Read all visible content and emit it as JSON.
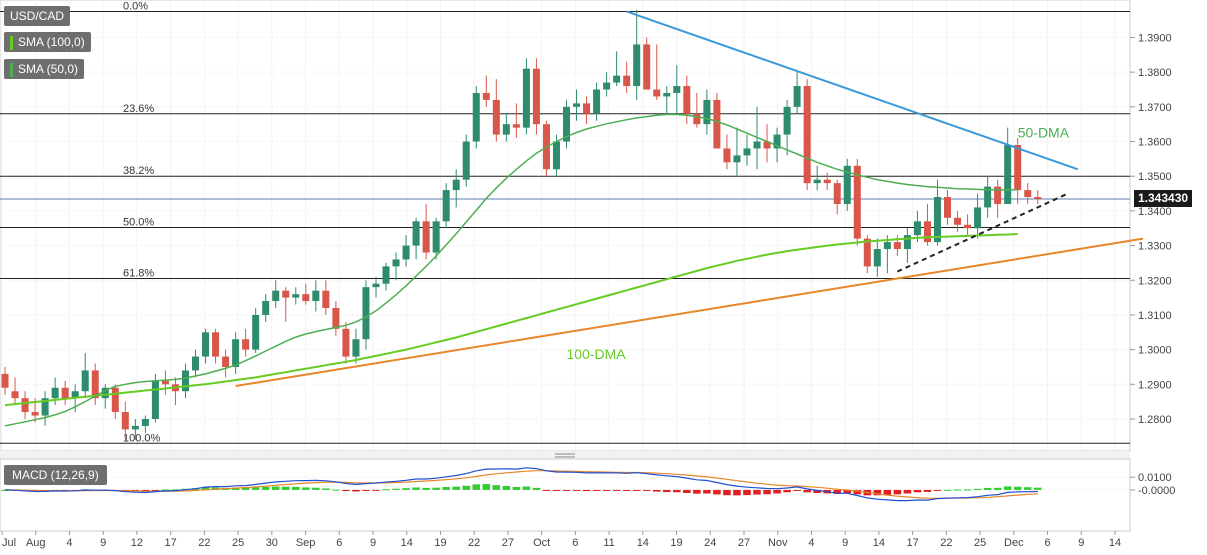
{
  "legend": {
    "symbol": "USD/CAD",
    "sma100": "SMA (100,0)",
    "sma50": "SMA (50,0)",
    "macd": "MACD (12,26,9)"
  },
  "colors": {
    "up": "#2e8b6e",
    "down": "#d9574a",
    "sma50": "#4caf50",
    "sma100": "#66cc22",
    "trend_down": "#3a9ad9",
    "trend_up": "#e8862a",
    "macd_line": "#2050d0",
    "signal_line": "#e8862a",
    "hist_pos": "#33cc33",
    "hist_neg": "#e02020"
  },
  "chart_data": [
    {
      "type": "candlestick",
      "title": "USD/CAD",
      "last_price": "1.343430",
      "ylim": [
        1.2725,
        1.3985
      ],
      "y_ticks": [
        "1.3900",
        "1.3800",
        "1.3700",
        "1.3600",
        "1.3500",
        "1.3400",
        "1.3300",
        "1.3200",
        "1.3100",
        "1.3000",
        "1.2900",
        "1.2800"
      ],
      "x_ticks": [
        "Jul",
        "Aug",
        "4",
        "9",
        "12",
        "17",
        "22",
        "25",
        "30",
        "Sep",
        "6",
        "9",
        "14",
        "19",
        "22",
        "27",
        "Oct",
        "6",
        "11",
        "14",
        "19",
        "24",
        "27",
        "Nov",
        "4",
        "9",
        "14",
        "17",
        "22",
        "25",
        "Dec",
        "6",
        "9",
        "14"
      ],
      "fib_levels": [
        {
          "label": "0.0%",
          "value": 1.3975
        },
        {
          "label": "23.6%",
          "value": 1.368
        },
        {
          "label": "38.2%",
          "value": 1.35
        },
        {
          "label": "50.0%",
          "value": 1.3352
        },
        {
          "label": "61.8%",
          "value": 1.3205
        },
        {
          "label": "100.0%",
          "value": 1.273
        }
      ],
      "annotations": [
        {
          "text": "50-DMA",
          "color": "#4caf50"
        },
        {
          "text": "100-DMA",
          "color": "#66cc22"
        }
      ],
      "ohlc": [
        [
          1.293,
          1.295,
          1.287,
          1.289
        ],
        [
          1.288,
          1.292,
          1.284,
          1.286
        ],
        [
          1.286,
          1.288,
          1.28,
          1.282
        ],
        [
          1.282,
          1.286,
          1.279,
          1.281
        ],
        [
          1.281,
          1.288,
          1.278,
          1.286
        ],
        [
          1.286,
          1.292,
          1.284,
          1.289
        ],
        [
          1.289,
          1.291,
          1.284,
          1.286
        ],
        [
          1.286,
          1.29,
          1.282,
          1.288
        ],
        [
          1.288,
          1.299,
          1.286,
          1.294
        ],
        [
          1.294,
          1.296,
          1.284,
          1.286
        ],
        [
          1.286,
          1.29,
          1.283,
          1.289
        ],
        [
          1.289,
          1.29,
          1.28,
          1.282
        ],
        [
          1.282,
          1.285,
          1.274,
          1.277
        ],
        [
          1.277,
          1.28,
          1.274,
          1.278
        ],
        [
          1.278,
          1.281,
          1.276,
          1.28
        ],
        [
          1.28,
          1.293,
          1.279,
          1.291
        ],
        [
          1.291,
          1.294,
          1.287,
          1.29
        ],
        [
          1.29,
          1.292,
          1.284,
          1.288
        ],
        [
          1.288,
          1.296,
          1.286,
          1.294
        ],
        [
          1.294,
          1.3,
          1.292,
          1.298
        ],
        [
          1.298,
          1.306,
          1.296,
          1.305
        ],
        [
          1.305,
          1.306,
          1.296,
          1.298
        ],
        [
          1.298,
          1.3,
          1.292,
          1.295
        ],
        [
          1.295,
          1.305,
          1.293,
          1.303
        ],
        [
          1.303,
          1.306,
          1.298,
          1.3
        ],
        [
          1.3,
          1.312,
          1.299,
          1.31
        ],
        [
          1.31,
          1.316,
          1.308,
          1.314
        ],
        [
          1.314,
          1.32,
          1.312,
          1.317
        ],
        [
          1.317,
          1.318,
          1.308,
          1.315
        ],
        [
          1.315,
          1.318,
          1.313,
          1.316
        ],
        [
          1.316,
          1.319,
          1.313,
          1.314
        ],
        [
          1.314,
          1.32,
          1.311,
          1.317
        ],
        [
          1.317,
          1.32,
          1.31,
          1.312
        ],
        [
          1.312,
          1.314,
          1.304,
          1.306
        ],
        [
          1.306,
          1.308,
          1.296,
          1.298
        ],
        [
          1.298,
          1.306,
          1.296,
          1.303
        ],
        [
          1.303,
          1.32,
          1.3,
          1.318
        ],
        [
          1.318,
          1.321,
          1.315,
          1.319
        ],
        [
          1.319,
          1.325,
          1.317,
          1.324
        ],
        [
          1.324,
          1.328,
          1.32,
          1.326
        ],
        [
          1.326,
          1.333,
          1.324,
          1.33
        ],
        [
          1.33,
          1.338,
          1.326,
          1.337
        ],
        [
          1.337,
          1.342,
          1.326,
          1.328
        ],
        [
          1.328,
          1.338,
          1.326,
          1.337
        ],
        [
          1.337,
          1.348,
          1.335,
          1.346
        ],
        [
          1.346,
          1.352,
          1.341,
          1.349
        ],
        [
          1.349,
          1.362,
          1.347,
          1.36
        ],
        [
          1.36,
          1.376,
          1.358,
          1.374
        ],
        [
          1.374,
          1.379,
          1.37,
          1.372
        ],
        [
          1.372,
          1.378,
          1.36,
          1.362
        ],
        [
          1.362,
          1.368,
          1.36,
          1.365
        ],
        [
          1.365,
          1.371,
          1.361,
          1.364
        ],
        [
          1.364,
          1.384,
          1.362,
          1.381
        ],
        [
          1.381,
          1.384,
          1.362,
          1.365
        ],
        [
          1.365,
          1.366,
          1.35,
          1.352
        ],
        [
          1.352,
          1.362,
          1.35,
          1.36
        ],
        [
          1.36,
          1.372,
          1.358,
          1.37
        ],
        [
          1.37,
          1.375,
          1.366,
          1.371
        ],
        [
          1.371,
          1.373,
          1.365,
          1.368
        ],
        [
          1.368,
          1.377,
          1.366,
          1.375
        ],
        [
          1.375,
          1.38,
          1.373,
          1.377
        ],
        [
          1.377,
          1.386,
          1.376,
          1.379
        ],
        [
          1.379,
          1.383,
          1.374,
          1.376
        ],
        [
          1.376,
          1.398,
          1.372,
          1.388
        ],
        [
          1.388,
          1.39,
          1.376,
          1.375
        ],
        [
          1.375,
          1.388,
          1.372,
          1.373
        ],
        [
          1.373,
          1.376,
          1.368,
          1.374
        ],
        [
          1.374,
          1.382,
          1.368,
          1.376
        ],
        [
          1.376,
          1.379,
          1.365,
          1.368
        ],
        [
          1.368,
          1.374,
          1.364,
          1.365
        ],
        [
          1.365,
          1.375,
          1.362,
          1.372
        ],
        [
          1.372,
          1.374,
          1.358,
          1.358
        ],
        [
          1.358,
          1.362,
          1.352,
          1.354
        ],
        [
          1.354,
          1.364,
          1.35,
          1.356
        ],
        [
          1.356,
          1.362,
          1.353,
          1.358
        ],
        [
          1.358,
          1.37,
          1.352,
          1.36
        ],
        [
          1.36,
          1.365,
          1.354,
          1.358
        ],
        [
          1.358,
          1.364,
          1.354,
          1.362
        ],
        [
          1.362,
          1.372,
          1.356,
          1.37
        ],
        [
          1.37,
          1.38,
          1.368,
          1.376
        ],
        [
          1.376,
          1.378,
          1.346,
          1.348
        ],
        [
          1.348,
          1.353,
          1.346,
          1.349
        ],
        [
          1.349,
          1.351,
          1.346,
          1.348
        ],
        [
          1.348,
          1.349,
          1.339,
          1.342
        ],
        [
          1.342,
          1.355,
          1.34,
          1.353
        ],
        [
          1.353,
          1.355,
          1.33,
          1.332
        ],
        [
          1.332,
          1.333,
          1.322,
          1.324
        ],
        [
          1.324,
          1.332,
          1.321,
          1.329
        ],
        [
          1.329,
          1.333,
          1.322,
          1.331
        ],
        [
          1.331,
          1.333,
          1.327,
          1.329
        ],
        [
          1.329,
          1.335,
          1.325,
          1.333
        ],
        [
          1.333,
          1.34,
          1.331,
          1.337
        ],
        [
          1.337,
          1.342,
          1.33,
          1.331
        ],
        [
          1.331,
          1.349,
          1.33,
          1.344
        ],
        [
          1.344,
          1.346,
          1.336,
          1.338
        ],
        [
          1.338,
          1.34,
          1.334,
          1.336
        ],
        [
          1.336,
          1.339,
          1.333,
          1.335
        ],
        [
          1.335,
          1.345,
          1.332,
          1.341
        ],
        [
          1.341,
          1.35,
          1.338,
          1.347
        ],
        [
          1.347,
          1.349,
          1.338,
          1.342
        ],
        [
          1.342,
          1.364,
          1.342,
          1.359
        ],
        [
          1.359,
          1.361,
          1.342,
          1.346
        ],
        [
          1.346,
          1.348,
          1.342,
          1.344
        ],
        [
          1.344,
          1.346,
          1.342,
          1.3434
        ]
      ],
      "sma50": [
        1.278,
        1.2786,
        1.2792,
        1.2798,
        1.2804,
        1.2812,
        1.2822,
        1.2835,
        1.285,
        1.2866,
        1.2882,
        1.2894,
        1.29,
        1.2905,
        1.2908,
        1.291,
        1.2912,
        1.2914,
        1.2918,
        1.2924,
        1.293,
        1.2938,
        1.2946,
        1.2956,
        1.2968,
        1.2982,
        1.2996,
        1.301,
        1.3024,
        1.3036,
        1.3045,
        1.3052,
        1.3058,
        1.3064,
        1.307,
        1.308,
        1.3094,
        1.3112,
        1.3134,
        1.3158,
        1.3184,
        1.3212,
        1.324,
        1.327,
        1.3302,
        1.3334,
        1.3368,
        1.3402,
        1.3436,
        1.3466,
        1.3494,
        1.352,
        1.3544,
        1.3566,
        1.3584,
        1.36,
        1.3614,
        1.3626,
        1.3636,
        1.3644,
        1.3651,
        1.3657,
        1.3663,
        1.3668,
        1.3672,
        1.3676,
        1.3678,
        1.3678,
        1.3676,
        1.3672,
        1.3666,
        1.3658,
        1.3648,
        1.3636,
        1.3624,
        1.3612,
        1.36,
        1.3588,
        1.3576,
        1.3564,
        1.3552,
        1.354,
        1.353,
        1.352,
        1.3512,
        1.3504,
        1.3497,
        1.349,
        1.3485,
        1.348,
        1.3476,
        1.3473,
        1.347,
        1.3468,
        1.3466,
        1.3464,
        1.3463,
        1.3462,
        1.3461,
        1.3461,
        1.3461,
        1.3461
      ],
      "sma100": [
        1.284,
        1.2843,
        1.2846,
        1.2849,
        1.2852,
        1.2855,
        1.2858,
        1.2861,
        1.2864,
        1.2867,
        1.287,
        1.2873,
        1.2876,
        1.2879,
        1.2882,
        1.2885,
        1.2888,
        1.2891,
        1.2894,
        1.2897,
        1.29,
        1.2904,
        1.2908,
        1.2912,
        1.2916,
        1.292,
        1.2925,
        1.293,
        1.2935,
        1.294,
        1.2945,
        1.295,
        1.2955,
        1.296,
        1.2965,
        1.297,
        1.2976,
        1.2982,
        1.2988,
        1.2994,
        1.3,
        1.3007,
        1.3014,
        1.3021,
        1.3028,
        1.3035,
        1.3043,
        1.3051,
        1.3059,
        1.3067,
        1.3075,
        1.3083,
        1.3091,
        1.3099,
        1.3107,
        1.3115,
        1.3123,
        1.3131,
        1.3139,
        1.3147,
        1.3155,
        1.3163,
        1.3171,
        1.3179,
        1.3187,
        1.3195,
        1.3203,
        1.3211,
        1.3219,
        1.3227,
        1.3235,
        1.3242,
        1.3249,
        1.3256,
        1.3262,
        1.3268,
        1.3274,
        1.3279,
        1.3284,
        1.3288,
        1.3292,
        1.3296,
        1.33,
        1.3303,
        1.3306,
        1.3309,
        1.3312,
        1.3314,
        1.3316,
        1.3318,
        1.332,
        1.3322,
        1.3324,
        1.3325,
        1.3326,
        1.3327,
        1.3328,
        1.3329,
        1.333,
        1.3331,
        1.3332,
        1.3333
      ]
    },
    {
      "type": "line",
      "title": "MACD (12,26,9)",
      "ylim": [
        -0.03,
        0.022
      ],
      "y_ticks": [
        "0.0100",
        "-0.0000"
      ]
    }
  ]
}
